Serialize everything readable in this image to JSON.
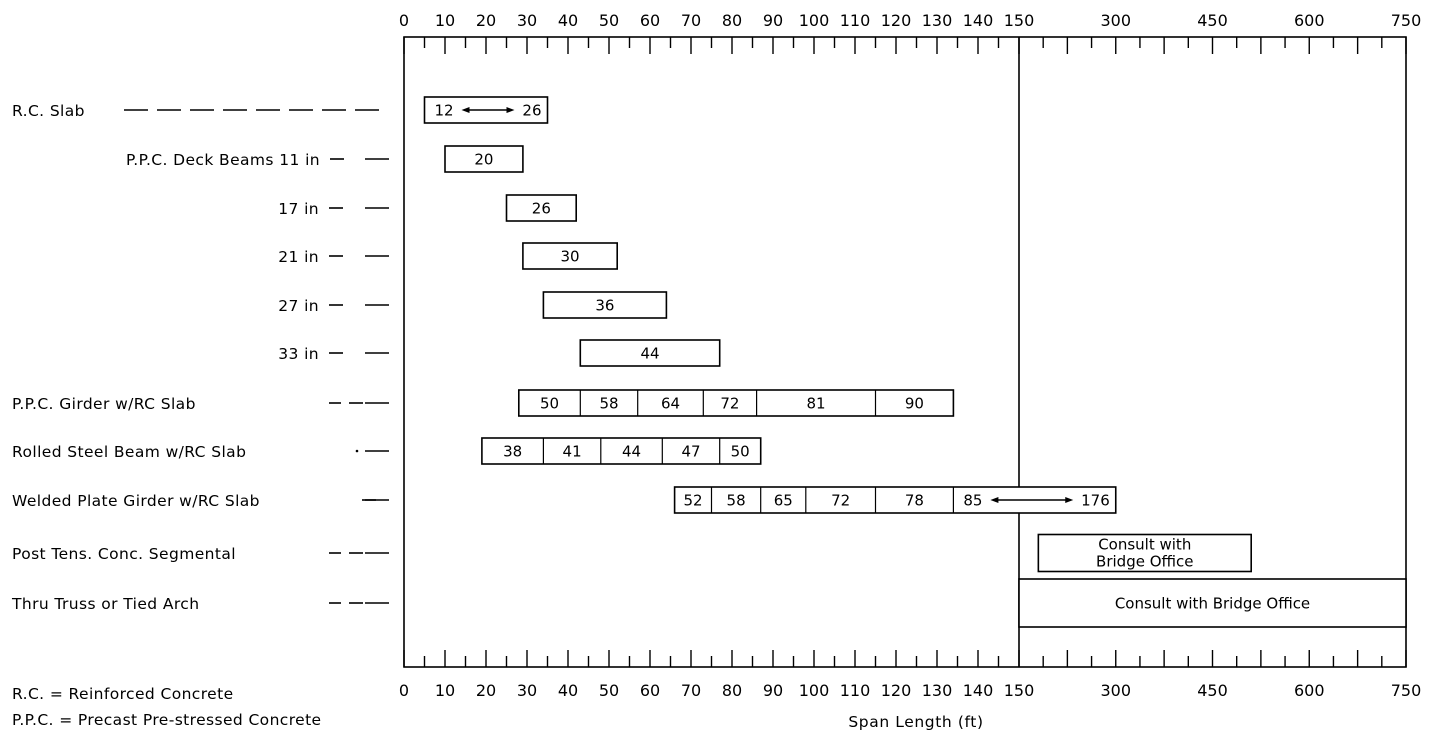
{
  "chart_data": {
    "type": "bar",
    "chart_kind": "span-range chart (horizontal range bars)",
    "xlabel": "Span Length (ft)",
    "x_scale": "piecewise: linear 0-150 ft (left segment), compressed linear 150-750 ft (right segment)",
    "xlim": [
      0,
      750
    ],
    "x_tick_labels": [
      "0",
      "10",
      "20",
      "30",
      "40",
      "50",
      "60",
      "70",
      "80",
      "90",
      "100",
      "110",
      "120",
      "130",
      "140",
      "150",
      "300",
      "450",
      "600",
      "750"
    ],
    "x_tick_values": [
      0,
      10,
      20,
      30,
      40,
      50,
      60,
      70,
      80,
      90,
      100,
      110,
      120,
      130,
      140,
      150,
      300,
      450,
      600,
      750
    ],
    "grid": false,
    "legend": "none",
    "rows": [
      {
        "label": "R.C. Slab",
        "leader": "solid-dash",
        "range": [
          5,
          35
        ],
        "segments": [
          {
            "range": [
              5,
              35
            ],
            "text": "12 ↔ 26"
          }
        ]
      },
      {
        "label": "P.P.C. Deck Beams 11 in",
        "leader": "short",
        "range": [
          10,
          29
        ],
        "segments": [
          {
            "range": [
              10,
              29
            ],
            "text": "20"
          }
        ]
      },
      {
        "label": "17 in",
        "leader": "short",
        "range": [
          25,
          42
        ],
        "segments": [
          {
            "range": [
              25,
              42
            ],
            "text": "26"
          }
        ]
      },
      {
        "label": "21 in",
        "leader": "short",
        "range": [
          29,
          52
        ],
        "segments": [
          {
            "range": [
              29,
              52
            ],
            "text": "30"
          }
        ]
      },
      {
        "label": "27 in",
        "leader": "short",
        "range": [
          34,
          64
        ],
        "segments": [
          {
            "range": [
              34,
              64
            ],
            "text": "36"
          }
        ]
      },
      {
        "label": "33 in",
        "leader": "short",
        "range": [
          43,
          77
        ],
        "segments": [
          {
            "range": [
              43,
              77
            ],
            "text": "44"
          }
        ]
      },
      {
        "label": "P.P.C. Girder w/RC Slab",
        "leader": "dash",
        "range": [
          28,
          134
        ],
        "segments": [
          {
            "range": [
              28,
              43
            ],
            "text": "50"
          },
          {
            "range": [
              43,
              57
            ],
            "text": "58"
          },
          {
            "range": [
              57,
              73
            ],
            "text": "64"
          },
          {
            "range": [
              73,
              86
            ],
            "text": "72"
          },
          {
            "range": [
              86,
              115
            ],
            "text": "81"
          },
          {
            "range": [
              115,
              134
            ],
            "text": "90"
          }
        ]
      },
      {
        "label": "Rolled Steel Beam  w/RC Slab",
        "leader": "dot",
        "range": [
          19,
          87
        ],
        "segments": [
          {
            "range": [
              19,
              34
            ],
            "text": "38"
          },
          {
            "range": [
              34,
              48
            ],
            "text": "41"
          },
          {
            "range": [
              48,
              63
            ],
            "text": "44"
          },
          {
            "range": [
              63,
              77
            ],
            "text": "47"
          },
          {
            "range": [
              77,
              87
            ],
            "text": "50"
          }
        ]
      },
      {
        "label": "Welded Plate Girder w/RC Slab",
        "leader": "short",
        "range": [
          66,
          300
        ],
        "segments": [
          {
            "range": [
              66,
              75
            ],
            "text": "52"
          },
          {
            "range": [
              75,
              87
            ],
            "text": "58"
          },
          {
            "range": [
              87,
              98
            ],
            "text": "65"
          },
          {
            "range": [
              98,
              115
            ],
            "text": "72"
          },
          {
            "range": [
              115,
              134
            ],
            "text": "78"
          },
          {
            "range": [
              134,
              300
            ],
            "text": "85 ↔ 176"
          }
        ]
      },
      {
        "label": "Post Tens. Conc. Segmental",
        "leader": "dash",
        "range": [
          180,
          510
        ],
        "segments": [
          {
            "range": [
              180,
              510
            ],
            "text_lines": [
              "Consult with",
              "Bridge Office"
            ]
          }
        ]
      },
      {
        "label": "Thru Truss or Tied Arch",
        "leader": "dash",
        "range": [
          150,
          750
        ],
        "segments": [
          {
            "range": [
              150,
              750
            ],
            "text": "Consult with Bridge Office"
          }
        ]
      }
    ],
    "annotations": [
      "R.C. = Reinforced Concrete",
      "P.P.C. = Precast Pre-stressed Concrete"
    ]
  }
}
